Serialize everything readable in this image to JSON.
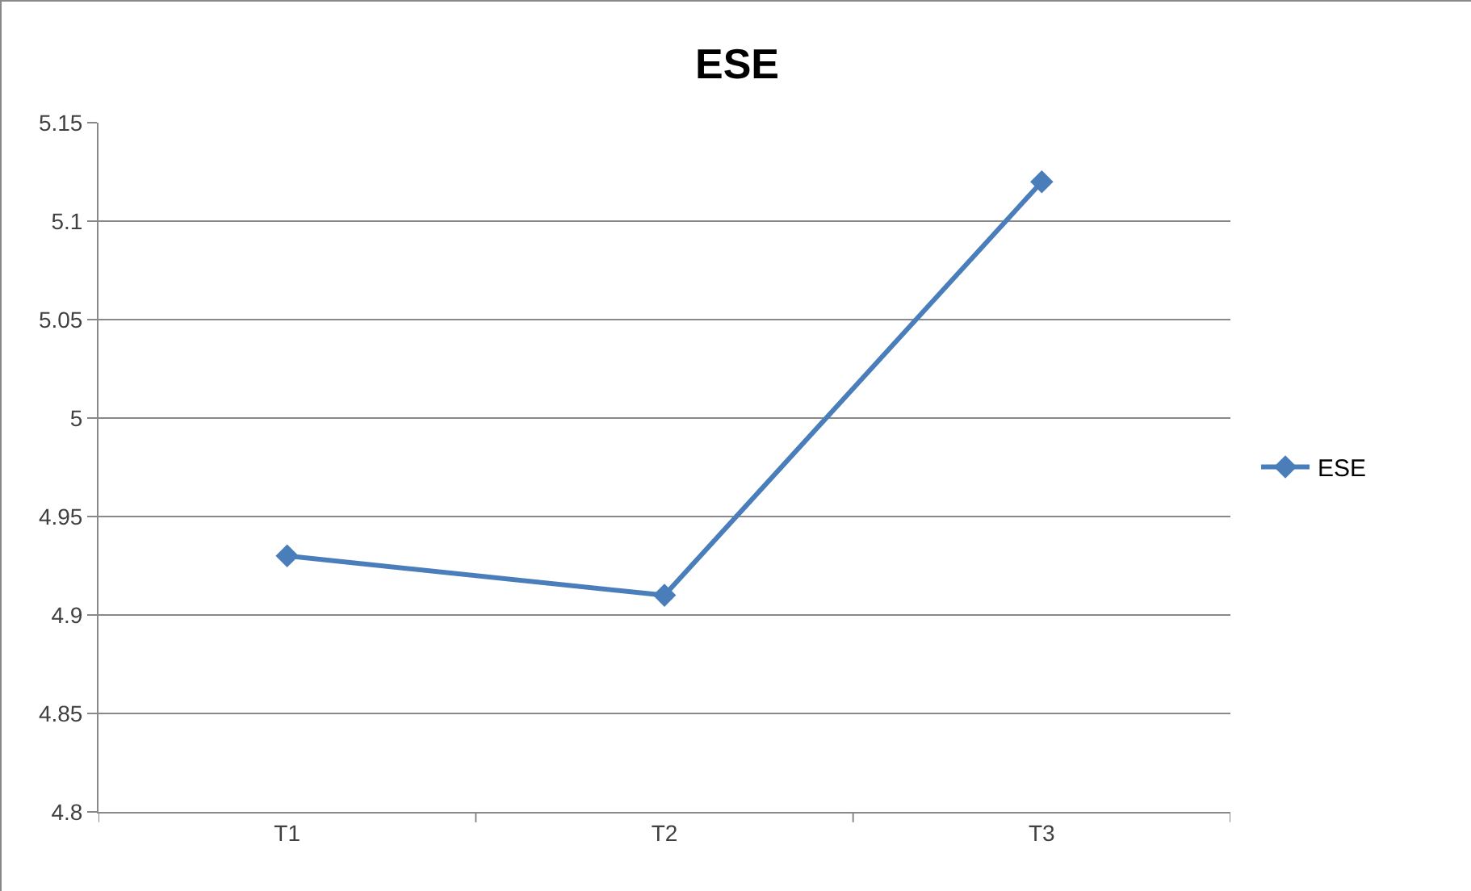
{
  "chart_data": {
    "type": "line",
    "title": "ESE",
    "categories": [
      "T1",
      "T2",
      "T3"
    ],
    "series": [
      {
        "name": "ESE",
        "color": "#4a7ebb",
        "values": [
          4.93,
          4.91,
          5.12
        ]
      }
    ],
    "ylim": [
      4.8,
      5.15
    ],
    "yticks": [
      4.8,
      4.85,
      4.9,
      4.95,
      5,
      5.05,
      5.1,
      5.15
    ],
    "grid": "y",
    "legend": "right",
    "marker": "diamond",
    "line_style": "solid"
  }
}
